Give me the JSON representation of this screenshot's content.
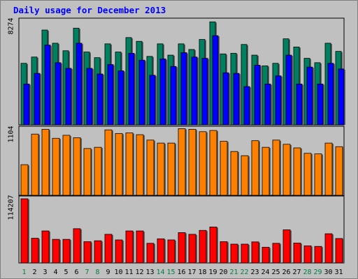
{
  "chart_data": {
    "type": "bar",
    "title": "Daily usage for December 2013",
    "categories": [
      "1",
      "2",
      "3",
      "4",
      "5",
      "6",
      "7",
      "8",
      "9",
      "10",
      "11",
      "12",
      "13",
      "14",
      "15",
      "16",
      "17",
      "18",
      "19",
      "20",
      "21",
      "22",
      "23",
      "24",
      "25",
      "26",
      "27",
      "28",
      "29",
      "30",
      "31"
    ],
    "weekend_days": [
      "1",
      "7",
      "8",
      "14",
      "15",
      "21",
      "22",
      "28",
      "29"
    ],
    "colors": {
      "weekday_tick": "#000000",
      "weekend_tick": "#008040",
      "hits": "#008060",
      "files": "#0000ff",
      "sites": "#ff8000",
      "kbytes": "#ff0000",
      "plot_bg": "#c0c0c0",
      "background": "#c0c0c0"
    },
    "panels": [
      {
        "name": "hits-files",
        "ylabel": "8274",
        "ymax": 8274,
        "series": [
          {
            "key": "hits",
            "values": [
              4900,
              5400,
              7550,
              6500,
              5900,
              7700,
              5800,
              5350,
              6450,
              5800,
              6950,
              6650,
              5450,
              6450,
              5550,
              6450,
              6000,
              6800,
              8200,
              5650,
              5700,
              6400,
              5550,
              4700,
              4900,
              6850,
              6200,
              5300,
              4950,
              6500,
              5850
            ]
          },
          {
            "key": "files",
            "values": [
              3250,
              4100,
              6350,
              4950,
              4500,
              6500,
              4500,
              4050,
              4800,
              4300,
              5700,
              5150,
              3950,
              5250,
              4650,
              5750,
              5400,
              5300,
              7100,
              4150,
              4100,
              3050,
              4750,
              3250,
              3900,
              5550,
              3250,
              4600,
              3250,
              4900,
              4450
            ]
          }
        ]
      },
      {
        "name": "sites",
        "ylabel": "1104",
        "ymax": 1104,
        "series": [
          {
            "key": "sites",
            "values": [
              510,
              1020,
              1100,
              950,
              1000,
              960,
              780,
              800,
              1090,
              1030,
              1040,
              1010,
              920,
              870,
              870,
              1110,
              1100,
              1060,
              1080,
              900,
              730,
              660,
              910,
              800,
              920,
              850,
              790,
              700,
              690,
              870,
              810
            ]
          }
        ]
      },
      {
        "name": "kbytes",
        "ylabel": "114207",
        "ymax": 114207,
        "series": [
          {
            "key": "kbytes",
            "values": [
              114207,
              44000,
              57000,
              42000,
              42000,
              61000,
              38000,
              39500,
              51000,
              41000,
              57000,
              57000,
              35000,
              43000,
              41000,
              54000,
              51000,
              58000,
              64000,
              38000,
              33500,
              33500,
              37500,
              28000,
              35000,
              59000,
              35500,
              30500,
              29500,
              52000,
              43500
            ]
          }
        ]
      }
    ]
  }
}
